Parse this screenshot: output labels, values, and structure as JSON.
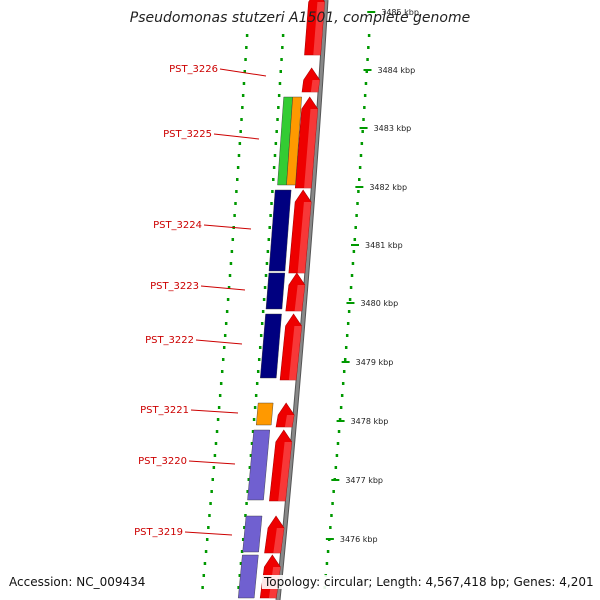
{
  "title": "Pseudomonas stutzeri A1501, complete genome",
  "accession": "Accession: NC_009434",
  "topology": "Topology: circular; Length: 4,567,418 bp; Genes: 4,201",
  "colors": {
    "backbone": "#888888",
    "gene_red": "#ee0000",
    "cog_navy": "#000080",
    "cog_orange": "#ff9900",
    "cog_green": "#33cc33",
    "cog_purple": "#7060d0",
    "tick_green": "#009900",
    "label_red": "#cc0000"
  },
  "scale_labels": [
    "3485 kbp",
    "3484 kbp",
    "3483 kbp",
    "3482 kbp",
    "3481 kbp",
    "3480 kbp",
    "3479 kbp",
    "3478 kbp",
    "3477 kbp",
    "3476 kbp"
  ],
  "gene_labels": [
    "PST_3226",
    "PST_3225",
    "PST_3224",
    "PST_3223",
    "PST_3222",
    "PST_3221",
    "PST_3220",
    "PST_3219"
  ]
}
